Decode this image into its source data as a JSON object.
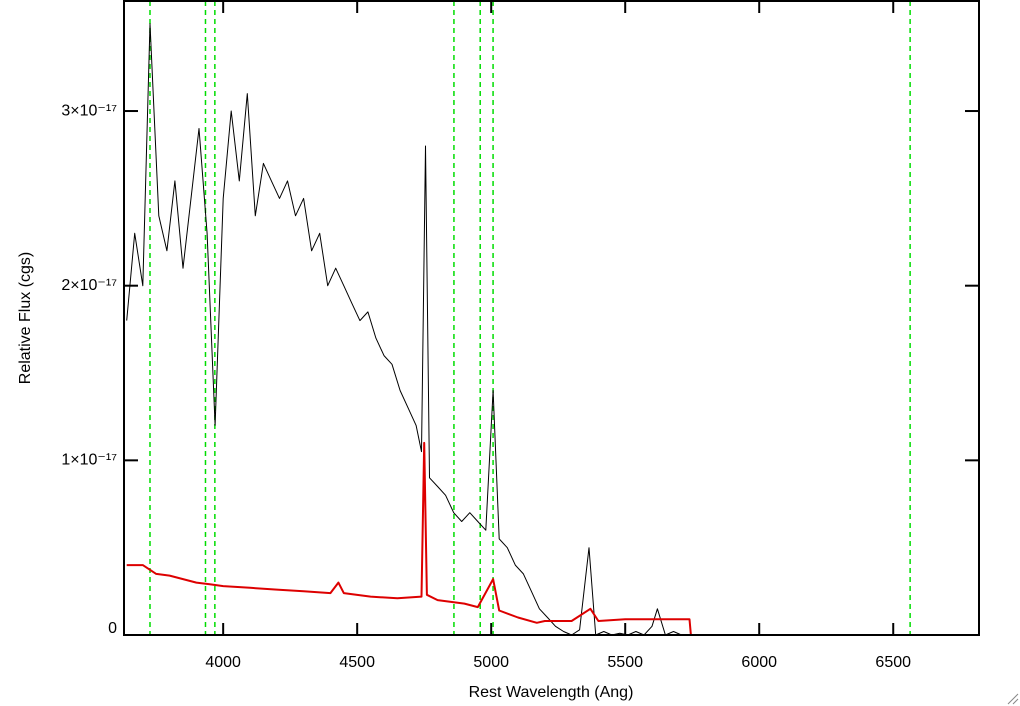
{
  "chart_data": {
    "type": "line",
    "xlabel": "Rest Wavelength (Ang)",
    "ylabel": "Relative Flux (cgs)",
    "xlim": [
      3630,
      6820
    ],
    "ylim": [
      0,
      3.63e-17
    ],
    "xticks": [
      4000,
      4500,
      5000,
      5500,
      6000,
      6500
    ],
    "yticks": [
      0,
      {
        "value": 1e-17,
        "label": "1×10⁻¹⁷"
      },
      {
        "value": 2e-17,
        "label": "2×10⁻¹⁷"
      },
      {
        "value": 3e-17,
        "label": "3×10⁻¹⁷"
      }
    ],
    "vlines": [
      3727,
      3934,
      3969,
      4861,
      4959,
      5007,
      6563
    ],
    "vline_color": "#00dd00",
    "series": [
      {
        "color": "#000000",
        "x": [
          3640,
          3670,
          3700,
          3727,
          3760,
          3790,
          3820,
          3850,
          3880,
          3910,
          3940,
          3970,
          4000,
          4030,
          4060,
          4090,
          4120,
          4150,
          4180,
          4210,
          4240,
          4270,
          4300,
          4330,
          4360,
          4390,
          4420,
          4450,
          4480,
          4510,
          4540,
          4570,
          4600,
          4630,
          4660,
          4690,
          4720,
          4740,
          4755,
          4770,
          4800,
          4830,
          4860,
          4890,
          4920,
          4950,
          4980,
          5007,
          5030,
          5060,
          5090,
          5120,
          5150,
          5180,
          5210,
          5240,
          5270,
          5300,
          5330,
          5365,
          5390,
          5420,
          5450,
          5480,
          5510,
          5540,
          5570,
          5600,
          5620,
          5650,
          5680,
          5710,
          5740
        ],
        "values": [
          1.8e-17,
          2.3e-17,
          2e-17,
          3.5e-17,
          2.4e-17,
          2.2e-17,
          2.6e-17,
          2.1e-17,
          2.5e-17,
          2.9e-17,
          2.3e-17,
          1.2e-17,
          2.5e-17,
          3e-17,
          2.6e-17,
          3.1e-17,
          2.4e-17,
          2.7e-17,
          2.6e-17,
          2.5e-17,
          2.6e-17,
          2.4e-17,
          2.5e-17,
          2.2e-17,
          2.3e-17,
          2e-17,
          2.1e-17,
          2e-17,
          1.9e-17,
          1.8e-17,
          1.85e-17,
          1.7e-17,
          1.6e-17,
          1.55e-17,
          1.4e-17,
          1.3e-17,
          1.2e-17,
          1.05e-17,
          2.8e-17,
          9e-18,
          8.5e-18,
          8e-18,
          7e-18,
          6.5e-18,
          7e-18,
          6.5e-18,
          6e-18,
          1.4e-17,
          5.5e-18,
          5e-18,
          4e-18,
          3.5e-18,
          2.5e-18,
          1.5e-18,
          1e-18,
          5e-19,
          2e-19,
          0,
          3e-19,
          5e-18,
          0,
          2e-19,
          0,
          1e-19,
          0,
          2e-19,
          0,
          5e-19,
          1.5e-18,
          0,
          2e-19,
          0,
          0
        ]
      },
      {
        "color": "#dd0000",
        "x": [
          3640,
          3700,
          3750,
          3800,
          3850,
          3900,
          3950,
          4000,
          4100,
          4200,
          4300,
          4400,
          4430,
          4450,
          4550,
          4650,
          4740,
          4750,
          4760,
          4800,
          4900,
          4950,
          5007,
          5030,
          5100,
          5170,
          5200,
          5300,
          5370,
          5400,
          5500,
          5600,
          5740,
          5745,
          6820
        ],
        "values": [
          4e-18,
          4e-18,
          3.5e-18,
          3.4e-18,
          3.2e-18,
          3e-18,
          2.9e-18,
          2.8e-18,
          2.7e-18,
          2.6e-18,
          2.5e-18,
          2.4e-18,
          3e-18,
          2.4e-18,
          2.2e-18,
          2.1e-18,
          2.2e-18,
          1.1e-17,
          2.3e-18,
          2e-18,
          1.8e-18,
          1.6e-18,
          3.2e-18,
          1.4e-18,
          1e-18,
          7e-19,
          8e-19,
          8e-19,
          1.5e-18,
          8e-19,
          9e-19,
          9e-19,
          9e-19,
          0,
          0
        ]
      }
    ]
  }
}
